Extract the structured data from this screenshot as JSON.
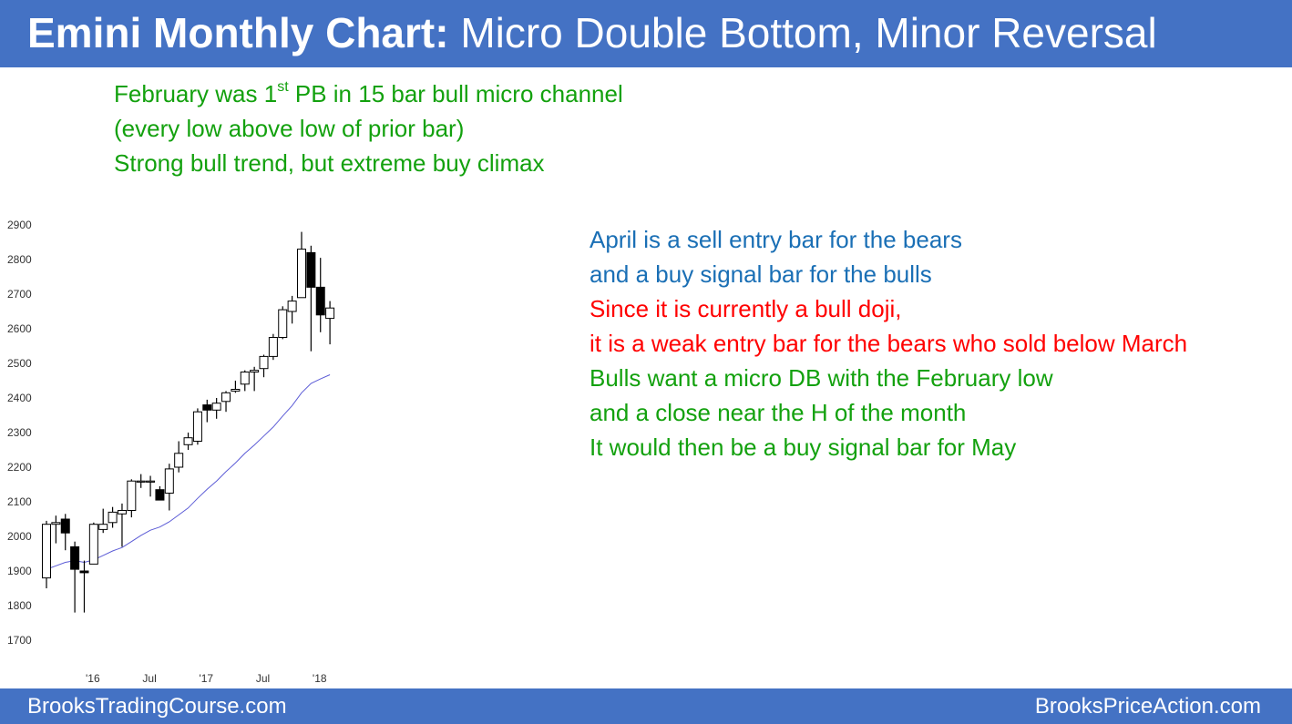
{
  "title": {
    "bold": "Emini Monthly Chart:",
    "rest": "Micro Double Bottom, Minor Reversal"
  },
  "top_notes": {
    "line1_pre": "February was 1",
    "line1_sup": "st",
    "line1_post": " PB in 15 bar bull micro channel",
    "line2": "(every low above low of prior bar)",
    "line3": "Strong bull trend, but extreme buy climax"
  },
  "right_notes": [
    {
      "text": "April is a sell entry bar for the bears",
      "color": "blue"
    },
    {
      "text": "and a buy signal bar for the bulls",
      "color": "blue"
    },
    {
      "text": "Since it is currently a bull doji,",
      "color": "red"
    },
    {
      "text": "it is a weak entry bar for the bears who sold below March",
      "color": "red"
    },
    {
      "text": "Bulls want a micro DB with the February low",
      "color": "green"
    },
    {
      "text": "and a close near the H of the month",
      "color": "green"
    },
    {
      "text": "It would then be a buy signal bar for May",
      "color": "green"
    }
  ],
  "footer": {
    "left": "BrooksTradingCourse.com",
    "right": "BrooksPriceAction.com"
  },
  "colors": {
    "header_bg": "#4472c4",
    "green_text": "#13a10e",
    "blue_text": "#1a6fb5",
    "red_text": "#ff0000",
    "moving_average": "#5b5bd6"
  },
  "chart_data": {
    "type": "candlestick",
    "title": "",
    "xlabel": "",
    "ylabel": "",
    "ylim": [
      1700,
      2900
    ],
    "yticks": [
      1700,
      1800,
      1900,
      2000,
      2100,
      2200,
      2300,
      2400,
      2500,
      2600,
      2700,
      2800,
      2900
    ],
    "x_tick_labels": [
      {
        "index": 5,
        "label": "'16"
      },
      {
        "index": 11,
        "label": "Jul"
      },
      {
        "index": 17,
        "label": "'17"
      },
      {
        "index": 23,
        "label": "Jul"
      },
      {
        "index": 29,
        "label": "'18"
      }
    ],
    "candles": [
      {
        "o": 1880,
        "h": 2045,
        "l": 1850,
        "c": 2035
      },
      {
        "o": 2035,
        "h": 2060,
        "l": 1980,
        "c": 2040
      },
      {
        "o": 2050,
        "h": 2065,
        "l": 1960,
        "c": 2010
      },
      {
        "o": 1970,
        "h": 1985,
        "l": 1780,
        "c": 1905
      },
      {
        "o": 1900,
        "h": 1930,
        "l": 1780,
        "c": 1895
      },
      {
        "o": 1920,
        "h": 2040,
        "l": 1920,
        "c": 2035
      },
      {
        "o": 2020,
        "h": 2080,
        "l": 2010,
        "c": 2035
      },
      {
        "o": 2040,
        "h": 2085,
        "l": 2025,
        "c": 2070
      },
      {
        "o": 2065,
        "h": 2095,
        "l": 1970,
        "c": 2075
      },
      {
        "o": 2075,
        "h": 2165,
        "l": 2055,
        "c": 2160
      },
      {
        "o": 2160,
        "h": 2180,
        "l": 2140,
        "c": 2160
      },
      {
        "o": 2160,
        "h": 2175,
        "l": 2115,
        "c": 2160
      },
      {
        "o": 2135,
        "h": 2145,
        "l": 2105,
        "c": 2105
      },
      {
        "o": 2125,
        "h": 2210,
        "l": 2075,
        "c": 2195
      },
      {
        "o": 2200,
        "h": 2275,
        "l": 2185,
        "c": 2240
      },
      {
        "o": 2265,
        "h": 2300,
        "l": 2250,
        "c": 2285
      },
      {
        "o": 2275,
        "h": 2370,
        "l": 2265,
        "c": 2360
      },
      {
        "o": 2380,
        "h": 2395,
        "l": 2330,
        "c": 2365
      },
      {
        "o": 2365,
        "h": 2400,
        "l": 2340,
        "c": 2385
      },
      {
        "o": 2390,
        "h": 2420,
        "l": 2360,
        "c": 2415
      },
      {
        "o": 2420,
        "h": 2450,
        "l": 2415,
        "c": 2425
      },
      {
        "o": 2440,
        "h": 2480,
        "l": 2420,
        "c": 2475
      },
      {
        "o": 2475,
        "h": 2490,
        "l": 2420,
        "c": 2480
      },
      {
        "o": 2485,
        "h": 2525,
        "l": 2460,
        "c": 2520
      },
      {
        "o": 2520,
        "h": 2585,
        "l": 2510,
        "c": 2575
      },
      {
        "o": 2575,
        "h": 2665,
        "l": 2570,
        "c": 2655
      },
      {
        "o": 2650,
        "h": 2695,
        "l": 2615,
        "c": 2680
      },
      {
        "o": 2690,
        "h": 2880,
        "l": 2690,
        "c": 2830
      },
      {
        "o": 2820,
        "h": 2840,
        "l": 2535,
        "c": 2720
      },
      {
        "o": 2720,
        "h": 2805,
        "l": 2590,
        "c": 2640
      },
      {
        "o": 2630,
        "h": 2680,
        "l": 2555,
        "c": 2660
      }
    ],
    "moving_average": [
      1905,
      1915,
      1925,
      1930,
      1925,
      1932,
      1945,
      1958,
      1968,
      1985,
      2003,
      2018,
      2027,
      2042,
      2062,
      2082,
      2110,
      2136,
      2160,
      2187,
      2212,
      2240,
      2264,
      2290,
      2316,
      2348,
      2378,
      2415,
      2442,
      2455,
      2467
    ]
  }
}
